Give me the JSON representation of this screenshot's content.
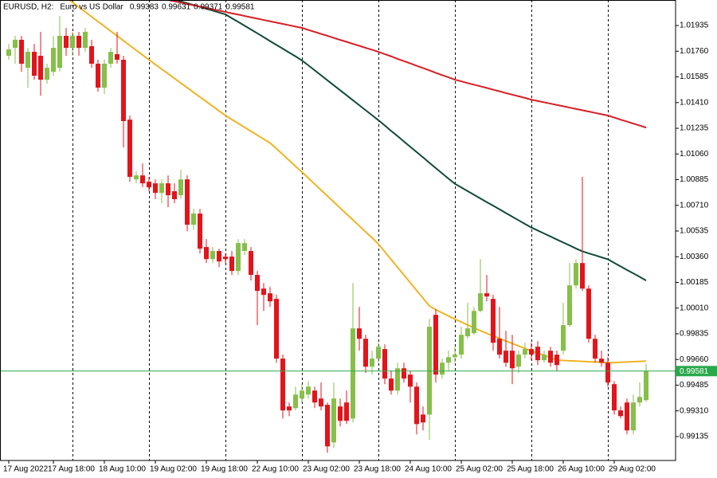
{
  "chart_data": {
    "type": "candlestick",
    "title": "EURUSD, H2:",
    "subtitle": "Euro vs US Dollar",
    "categories": [
      "17 Aug 2022",
      null,
      null,
      null,
      null,
      null,
      null,
      "17 Aug 18:00",
      null,
      null,
      null,
      null,
      null,
      null,
      null,
      "18 Aug 10:00",
      null,
      null,
      null,
      null,
      null,
      null,
      null,
      "19 Aug 02:00",
      null,
      null,
      null,
      null,
      null,
      null,
      null,
      "19 Aug 18:00",
      null,
      null,
      null,
      null,
      null,
      null,
      null,
      "22 Aug 10:00",
      null,
      null,
      null,
      null,
      null,
      null,
      null,
      "23 Aug 02:00",
      null,
      null,
      null,
      null,
      null,
      null,
      null,
      "23 Aug 18:00",
      null,
      null,
      null,
      null,
      null,
      null,
      null,
      "24 Aug 10:00",
      null,
      null,
      null,
      null,
      null,
      null,
      null,
      "25 Aug 02:00",
      null,
      null,
      null,
      null,
      null,
      null,
      null,
      "25 Aug 18:00",
      null,
      null,
      null,
      null,
      null,
      null,
      null,
      "26 Aug 10:00",
      null,
      null,
      null,
      null,
      null,
      null,
      null,
      "29 Aug 02:00",
      null,
      null,
      null,
      null,
      null
    ],
    "candles": {
      "up_color": "#86bf4a",
      "down_color": "#e3141b",
      "open": [
        1.01729,
        1.01783,
        1.01838,
        1.01647,
        1.01756,
        1.01729,
        1.01566,
        1.0162,
        1.01647,
        1.01865,
        1.01783,
        1.01865,
        1.01783,
        1.01794,
        1.01675,
        1.01512,
        1.01675,
        1.0174,
        1.01702,
        1.01294,
        1.00887,
        1.00914,
        1.00871,
        1.0086,
        1.00795,
        1.0086,
        1.00806,
        1.00779,
        1.00887,
        1.00578,
        1.00654,
        1.00426,
        1.00344,
        1.00399,
        1.00361,
        1.00361,
        1.00263,
        1.00399,
        1.00399,
        1.00236,
        1.00143,
        1.00111,
        1.00073,
        0.99666,
        0.9934,
        0.99329,
        0.99394,
        0.99421,
        0.99448,
        0.99394,
        0.99351,
        0.99095,
        0.9934,
        0.99367,
        0.99258,
        0.99872,
        0.99801,
        0.99611,
        0.99666,
        0.99731,
        0.9953,
        0.99448,
        0.996,
        0.99557,
        0.99475,
        0.99285,
        0.99285,
        0.99964,
        0.99557,
        0.99638,
        0.99676,
        0.99693,
        0.99818,
        0.99839,
        0.99991,
        1.00111,
        1.00073,
        0.99801,
        0.9972,
        0.9972,
        0.99611,
        0.99693,
        0.99731,
        0.99747,
        0.99655,
        0.9972,
        0.99693,
        0.9972,
        0.99894,
        1.00165,
        1.00317,
        1.00143,
        0.99801,
        0.99666,
        0.99638,
        0.99492,
        0.99313,
        0.99367,
        0.99177,
        0.99367,
        0.99383
      ],
      "high": [
        1.0181,
        1.01865,
        1.01865,
        1.01783,
        1.0181,
        1.01892,
        1.01675,
        1.01865,
        1.02,
        1.01919,
        1.01892,
        1.01892,
        1.01919,
        1.01838,
        1.01702,
        1.01702,
        1.01783,
        1.01892,
        1.01729,
        1.01322,
        1.00942,
        1.00996,
        1.00904,
        1.00887,
        1.00887,
        1.00914,
        1.0086,
        1.00952,
        1.00914,
        1.00686,
        1.00686,
        1.0048,
        1.00426,
        1.00415,
        1.00382,
        1.00399,
        1.0048,
        1.0048,
        1.00426,
        1.00263,
        1.00181,
        1.00154,
        1.001,
        0.99693,
        0.99367,
        0.99475,
        0.99492,
        0.99513,
        0.99475,
        0.99503,
        0.99367,
        0.99503,
        0.99394,
        0.99448,
        1.00181,
        1.00018,
        0.99828,
        0.9972,
        0.99774,
        0.99763,
        0.99584,
        0.99638,
        0.99638,
        0.99584,
        0.99503,
        0.9934,
        0.99937,
        1.00002,
        0.99666,
        0.9972,
        0.99747,
        0.99883,
        1.00046,
        1.00018,
        1.00344,
        1.00236,
        1.001,
        1.00018,
        0.99855,
        0.99828,
        0.9972,
        0.99774,
        0.99774,
        0.99785,
        0.9972,
        0.99747,
        0.9972,
        1.00046,
        1.00317,
        1.00344,
        1.00904,
        1.00165,
        0.99828,
        0.9972,
        0.99676,
        0.99513,
        0.9934,
        0.99394,
        0.99421,
        0.99503,
        0.99631
      ],
      "low": [
        1.01702,
        1.01675,
        1.0162,
        1.01512,
        1.01566,
        1.01457,
        1.01539,
        1.01593,
        1.0162,
        1.01729,
        1.01729,
        1.01729,
        1.01756,
        1.01647,
        1.01485,
        1.01468,
        1.01647,
        1.01675,
        1.01104,
        1.00871,
        1.0086,
        1.00833,
        1.00806,
        1.00752,
        1.00724,
        1.00697,
        1.00724,
        1.00752,
        1.00534,
        1.00545,
        1.00382,
        1.00317,
        1.00317,
        1.0029,
        1.00317,
        1.00236,
        1.00236,
        1.00371,
        1.00198,
        0.99894,
        0.99991,
        1.00018,
        0.99638,
        0.99258,
        0.99274,
        0.99313,
        0.99367,
        0.99394,
        0.99329,
        0.99313,
        0.99025,
        0.99057,
        0.99204,
        0.9922,
        0.99231,
        0.9972,
        0.99568,
        0.99557,
        0.99638,
        0.99492,
        0.99421,
        0.99421,
        0.99503,
        0.99367,
        0.9915,
        0.99177,
        0.99112,
        0.99503,
        0.9953,
        0.99584,
        0.99638,
        0.99666,
        0.99801,
        0.99828,
        0.9998,
        1.00056,
        0.9972,
        0.99666,
        0.99611,
        0.99492,
        0.99568,
        0.99666,
        0.99655,
        0.99622,
        0.99638,
        0.99611,
        0.99584,
        0.99693,
        0.99883,
        1.00143,
        1.00127,
        0.99774,
        0.99638,
        0.99611,
        0.99475,
        0.99285,
        0.99258,
        0.9915,
        0.9915,
        0.9934,
        0.99371
      ],
      "close": [
        1.01772,
        1.01838,
        1.01675,
        1.01756,
        1.01593,
        1.01566,
        1.01647,
        1.01783,
        1.01865,
        1.01783,
        1.01865,
        1.01783,
        1.01892,
        1.01675,
        1.01512,
        1.01675,
        1.01756,
        1.01702,
        1.01284,
        1.00904,
        1.00914,
        1.0086,
        1.00833,
        1.00795,
        1.0086,
        1.00779,
        1.00752,
        1.00887,
        1.00578,
        1.00654,
        1.00415,
        1.00344,
        1.00399,
        1.00328,
        1.00344,
        1.00263,
        1.00453,
        1.00453,
        1.00236,
        1.00127,
        1.001,
        1.00056,
        0.99666,
        0.99313,
        0.99313,
        0.99421,
        0.99448,
        0.99475,
        0.99367,
        0.9934,
        0.99068,
        0.99394,
        0.99242,
        0.99242,
        0.99872,
        0.99801,
        0.99611,
        0.99666,
        0.99747,
        0.9953,
        0.99448,
        0.996,
        0.9953,
        0.99475,
        0.9922,
        0.99231,
        0.99883,
        0.99557,
        0.99638,
        0.99676,
        0.99693,
        0.99828,
        0.99872,
        0.99991,
        1.00111,
        1.00089,
        0.99774,
        0.99693,
        0.99638,
        0.996,
        0.99693,
        0.99731,
        0.99693,
        0.99655,
        0.99693,
        0.99638,
        0.99622,
        0.99894,
        1.00165,
        1.00317,
        1.00143,
        0.99801,
        0.99666,
        0.99638,
        0.99503,
        0.99313,
        0.99274,
        0.99177,
        0.99367,
        0.99405,
        0.99581
      ]
    },
    "moving_averages": [
      {
        "color": "#f0b323",
        "values": [
          1.02424,
          1.02391,
          1.02358,
          1.02325,
          1.02291,
          1.02258,
          1.02225,
          1.02192,
          1.02159,
          1.02126,
          1.02093,
          1.0206,
          1.02028,
          1.01995,
          1.01962,
          1.0193,
          1.01897,
          1.01865,
          1.01832,
          1.01799,
          1.01767,
          1.01734,
          1.01702,
          1.0167,
          1.01638,
          1.01607,
          1.01575,
          1.01543,
          1.01512,
          1.0148,
          1.01448,
          1.01417,
          1.01385,
          1.01353,
          1.01322,
          1.01295,
          1.01268,
          1.01242,
          1.01215,
          1.01188,
          1.01161,
          1.01135,
          1.01097,
          1.01057,
          1.01016,
          1.00976,
          1.00937,
          1.00896,
          1.00855,
          1.00814,
          1.00774,
          1.00733,
          1.00692,
          1.00652,
          1.00611,
          1.0057,
          1.00529,
          1.00489,
          1.00446,
          1.00394,
          1.00341,
          1.00288,
          1.00236,
          1.00183,
          1.0013,
          1.00078,
          1.00025,
          0.99999,
          0.99978,
          0.99956,
          0.99935,
          0.99915,
          0.99895,
          0.99876,
          0.99856,
          0.99838,
          0.9982,
          0.99803,
          0.99786,
          0.99769,
          0.99752,
          0.99735,
          0.99718,
          0.99704,
          0.99688,
          0.99673,
          0.99657,
          0.99653,
          0.99651,
          0.99649,
          0.99647,
          0.99644,
          0.99643,
          0.99641,
          0.99638,
          0.99639,
          0.99641,
          0.99643,
          0.99645,
          0.99647,
          0.99649
        ]
      },
      {
        "color": "#0f4a3a",
        "values": [
          1.02408,
          1.02397,
          1.02386,
          1.02375,
          1.02364,
          1.02353,
          1.02342,
          1.02332,
          1.02321,
          1.0231,
          1.02299,
          1.02288,
          1.02276,
          1.02265,
          1.02254,
          1.02243,
          1.02231,
          1.0222,
          1.02208,
          1.02198,
          1.02186,
          1.02175,
          1.02163,
          1.02151,
          1.02138,
          1.02125,
          1.02113,
          1.021,
          1.02087,
          1.02075,
          1.02062,
          1.02049,
          1.02037,
          1.02024,
          1.02011,
          1.01985,
          1.0196,
          1.01934,
          1.01908,
          1.01882,
          1.01856,
          1.01829,
          1.01803,
          1.01777,
          1.01751,
          1.01725,
          1.01697,
          1.01664,
          1.0163,
          1.01596,
          1.01562,
          1.01528,
          1.01494,
          1.0146,
          1.01426,
          1.01392,
          1.01358,
          1.01324,
          1.0129,
          1.01254,
          1.01217,
          1.01182,
          1.01145,
          1.01109,
          1.01073,
          1.01037,
          1.01,
          1.00964,
          1.00928,
          1.00892,
          1.00857,
          1.00832,
          1.00807,
          1.00782,
          1.00757,
          1.00732,
          1.00708,
          1.00683,
          1.00658,
          1.00633,
          1.00608,
          1.00583,
          1.00559,
          1.00539,
          1.00518,
          1.00498,
          1.00477,
          1.00457,
          1.00437,
          1.00416,
          1.00397,
          1.00383,
          1.0037,
          1.00356,
          1.00343,
          1.00318,
          1.00294,
          1.0027,
          1.00247,
          1.00223,
          1.00198
        ]
      },
      {
        "color": "#d81e25",
        "values": [
          1.02272,
          1.02266,
          1.02261,
          1.02256,
          1.0225,
          1.02245,
          1.02239,
          1.02234,
          1.02228,
          1.02223,
          1.02218,
          1.02211,
          1.02204,
          1.02197,
          1.0219,
          1.02184,
          1.02177,
          1.0217,
          1.02163,
          1.02157,
          1.0215,
          1.02143,
          1.02136,
          1.02127,
          1.02118,
          1.02109,
          1.021,
          1.02091,
          1.02082,
          1.02073,
          1.02064,
          1.02055,
          1.02045,
          1.02037,
          1.02028,
          1.02018,
          1.0201,
          1.02,
          1.01991,
          1.01982,
          1.01973,
          1.01964,
          1.01955,
          1.01946,
          1.01937,
          1.01928,
          1.01919,
          1.01905,
          1.01892,
          1.01878,
          1.01865,
          1.01851,
          1.01837,
          1.01824,
          1.0181,
          1.01797,
          1.01783,
          1.0177,
          1.01756,
          1.0174,
          1.01725,
          1.01708,
          1.01693,
          1.01677,
          1.01661,
          1.01645,
          1.0163,
          1.01613,
          1.01597,
          1.01582,
          1.01566,
          1.01555,
          1.01543,
          1.01532,
          1.01521,
          1.0151,
          1.01498,
          1.01487,
          1.01475,
          1.01464,
          1.01453,
          1.01442,
          1.0143,
          1.01421,
          1.01412,
          1.01403,
          1.01394,
          1.01385,
          1.01376,
          1.01367,
          1.01358,
          1.01349,
          1.0134,
          1.01331,
          1.01322,
          1.01308,
          1.01294,
          1.01281,
          1.01267,
          1.01254,
          1.0124
        ]
      }
    ],
    "price_line_color": "#2aa84a",
    "ylim": [
      0.98972,
      1.02109
    ],
    "yticks": [
      1.01935,
      {
        "value": 1.0176,
        "label": "1.01760"
      },
      1.01585,
      {
        "value": 1.0141,
        "label": "1.01410"
      },
      1.01235,
      {
        "value": 1.0106,
        "label": "1.01060"
      },
      1.00885,
      {
        "value": 1.0071,
        "label": "1.00710"
      },
      1.00535,
      {
        "value": 1.0036,
        "label": "1.00360"
      },
      1.00185,
      {
        "value": 1.0001,
        "label": "1.00010"
      },
      0.99835,
      {
        "value": 0.9966,
        "label": "0.99660"
      },
      0.99485,
      {
        "value": 0.9931,
        "label": "0.99310"
      },
      0.99135
    ]
  }
}
